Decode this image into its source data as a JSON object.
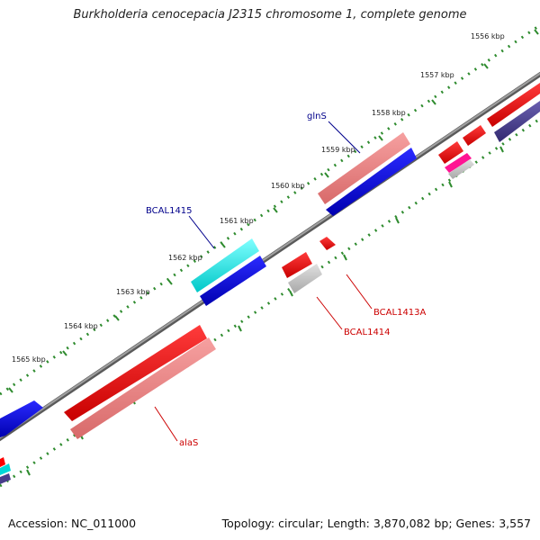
{
  "title": "Burkholderia cenocepacia J2315 chromosome 1, complete genome",
  "footer": {
    "accession": "Accession: NC_011000",
    "summary": "Topology: circular; Length: 3,870,082 bp; Genes: 3,557"
  },
  "ticks": [
    "1556 kbp",
    "1557 kbp",
    "1558 kbp",
    "1559 kbp",
    "1560 kbp",
    "1561 kbp",
    "1562 kbp",
    "1563 kbp",
    "1564 kbp",
    "1565 kbp"
  ],
  "genes": [
    {
      "label": "glnS",
      "color": "#00008b"
    },
    {
      "label": "BCAL1415",
      "color": "#00008b"
    },
    {
      "label": "BCAL1413A",
      "color": "#cc0000"
    },
    {
      "label": "BCAL1414",
      "color": "#cc0000"
    },
    {
      "label": "alaS",
      "color": "#cc0000"
    }
  ],
  "colors": {
    "backbone": "#808080",
    "tick": "#2e8b2e",
    "forward_cds": "#ff0000",
    "forward_rna": "#f08080",
    "reverse_cds": "#0000ff",
    "reverse_cyan": "#00ffff",
    "gray_feature": "#c0c0c0",
    "slate": "#483d8b",
    "magenta": "#ff1493"
  }
}
